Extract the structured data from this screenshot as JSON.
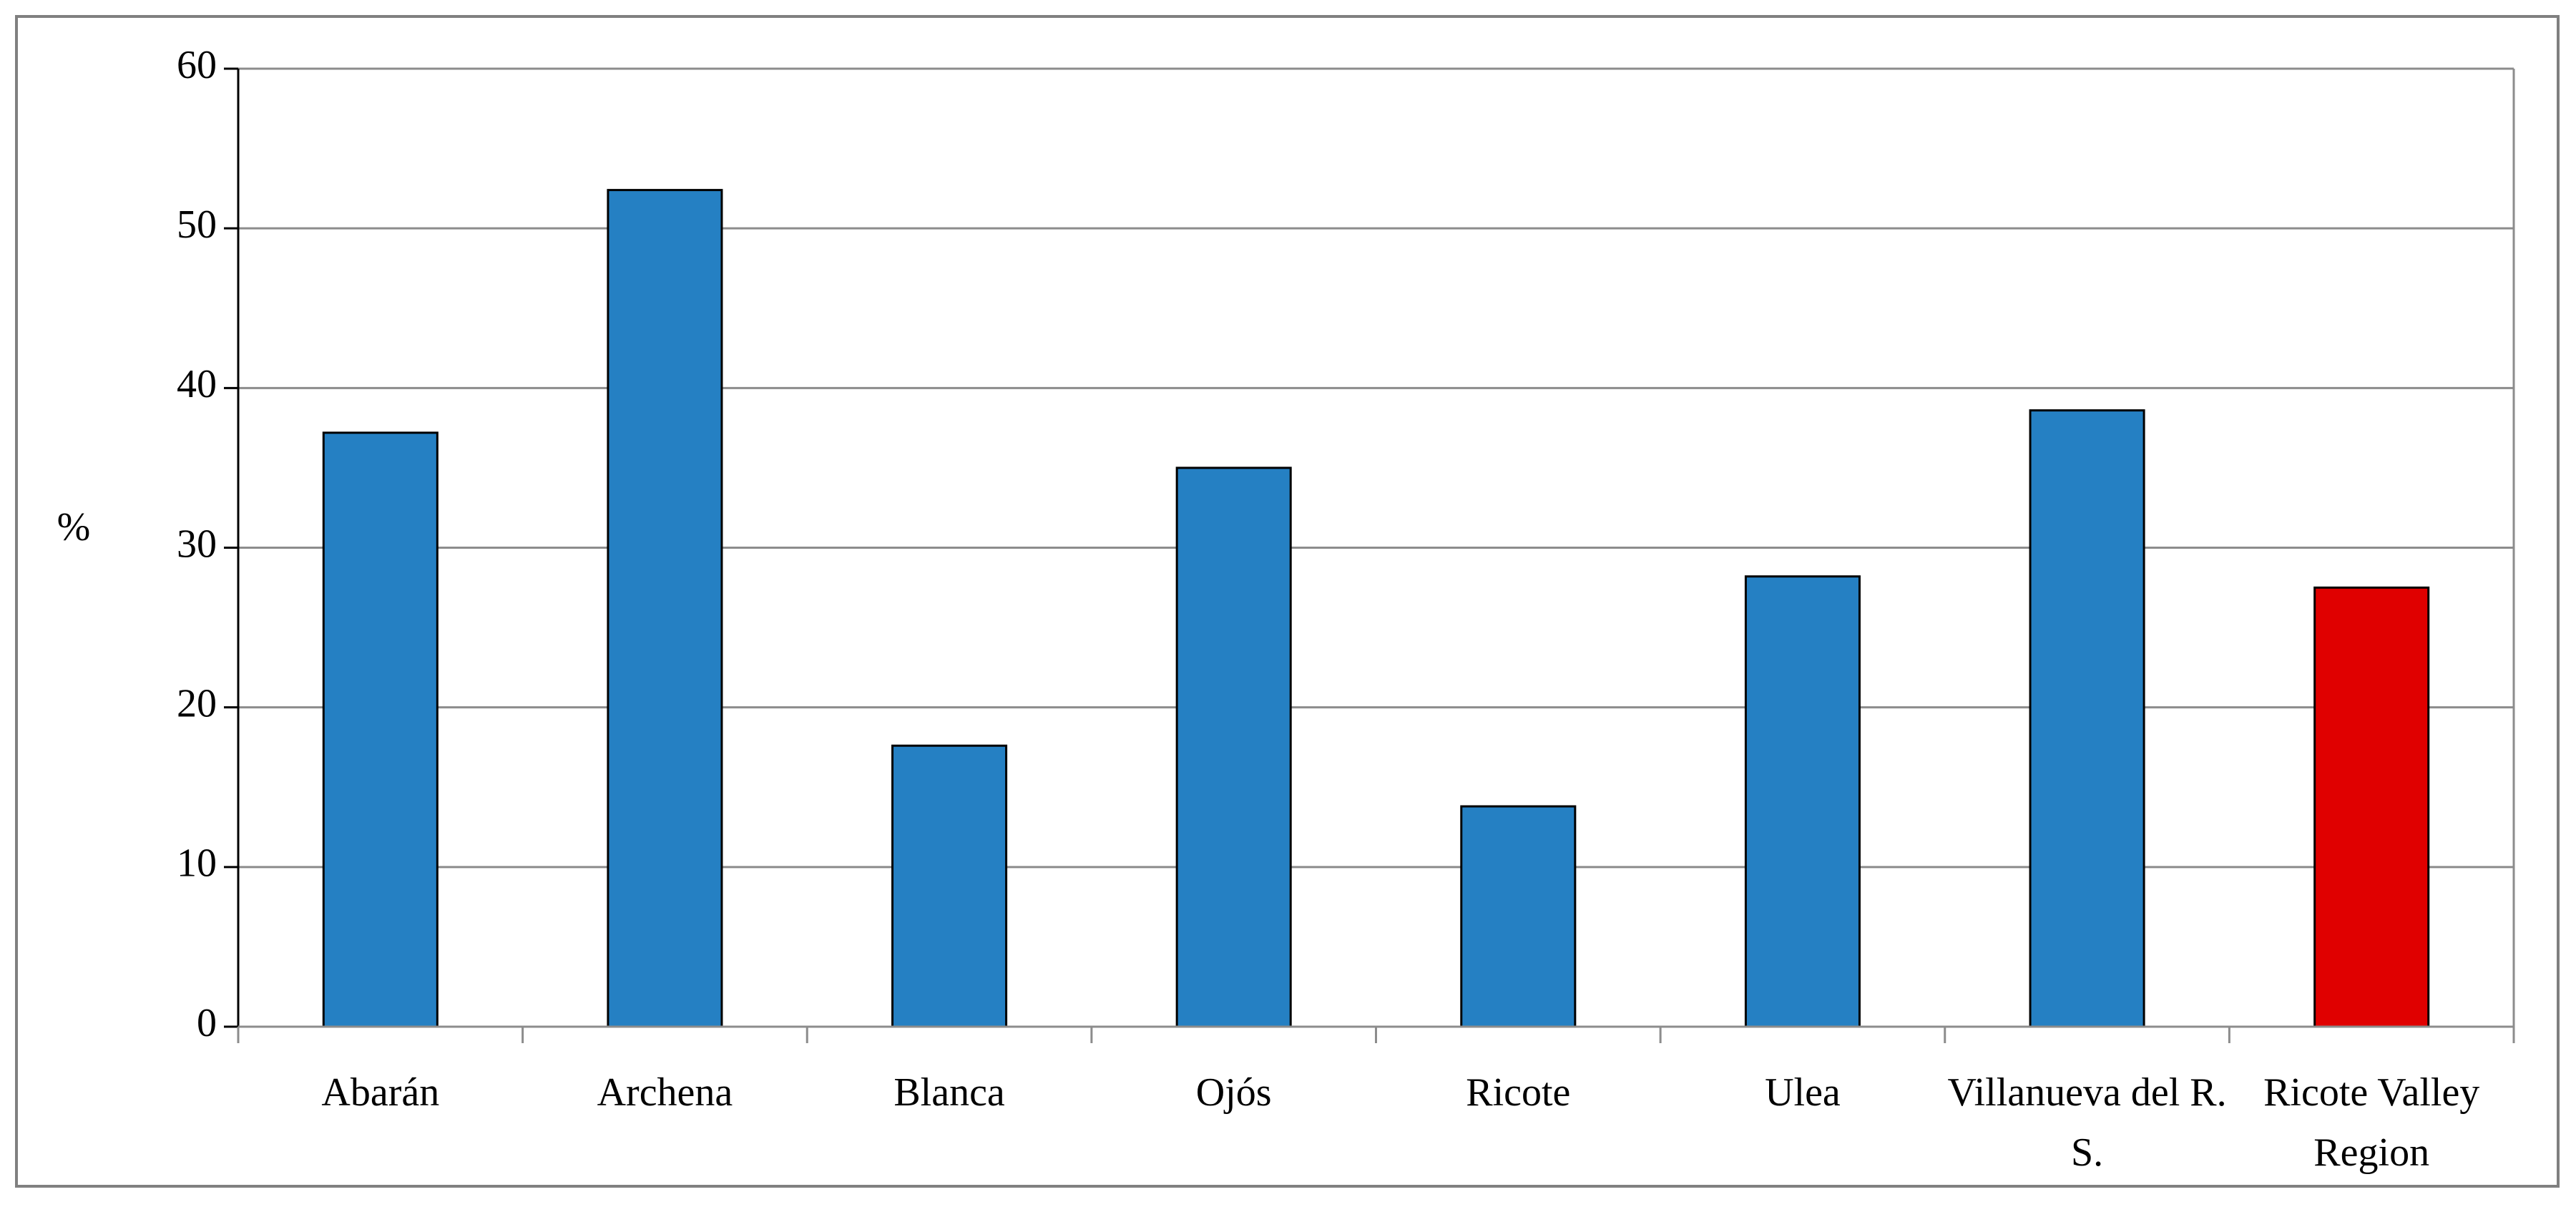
{
  "chart_data": {
    "type": "bar",
    "y_label": "%",
    "categories": [
      "Abarán",
      "Archena",
      "Blanca",
      "Ojós",
      "Ricote",
      "Ulea",
      "Villanueva del R. S.",
      "Ricote Valley Region"
    ],
    "values": [
      37.2,
      52.4,
      17.6,
      35.0,
      13.8,
      28.2,
      38.6,
      27.5
    ],
    "colors": [
      "#2580c3",
      "#2580c3",
      "#2580c3",
      "#2580c3",
      "#2580c3",
      "#2580c3",
      "#2580c3",
      "#e00000"
    ],
    "ylim": [
      0,
      60
    ],
    "yticks": [
      0,
      10,
      20,
      30,
      40,
      50,
      60
    ],
    "grid": true
  }
}
